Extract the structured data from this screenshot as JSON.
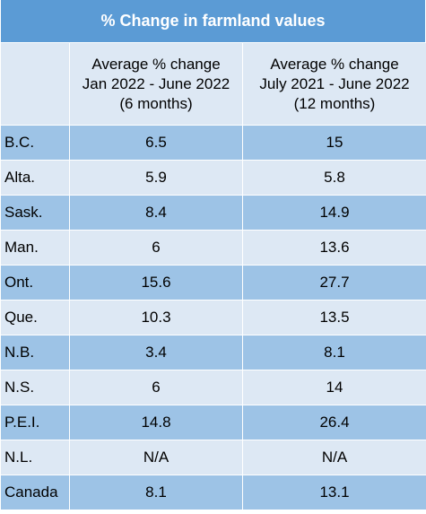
{
  "title": "% Change in farmland values",
  "columns": [
    "",
    "Average % change Jan 2022 - June 2022 (6 months)",
    "Average % change July 2021 - June 2022 (12 months)"
  ],
  "header_lines": {
    "col1": [
      "Average % change",
      "Jan 2022 - June 2022",
      "(6 months)"
    ],
    "col2": [
      "Average % change",
      "July 2021 - June 2022",
      "(12 months)"
    ]
  },
  "colors": {
    "title_bg": "#5b9bd5",
    "row_dark": "#9dc3e6",
    "row_light": "#dde8f4"
  },
  "chart_data": {
    "type": "table",
    "title": "% Change in farmland values",
    "columns": [
      "",
      "Average % change Jan 2022 - June 2022 (6 months)",
      "Average % change July 2021 - June 2022 (12 months)"
    ],
    "rows": [
      [
        "B.C.",
        "6.5",
        "15"
      ],
      [
        "Alta.",
        "5.9",
        "5.8"
      ],
      [
        "Sask.",
        "8.4",
        "14.9"
      ],
      [
        "Man.",
        "6",
        "13.6"
      ],
      [
        "Ont.",
        "15.6",
        "27.7"
      ],
      [
        "Que.",
        "10.3",
        "13.5"
      ],
      [
        "N.B.",
        "3.4",
        "8.1"
      ],
      [
        "N.S.",
        "6",
        "14"
      ],
      [
        "P.E.I.",
        "14.8",
        "26.4"
      ],
      [
        "N.L.",
        "N/A",
        "N/A"
      ],
      [
        "Canada",
        "8.1",
        "13.1"
      ]
    ]
  }
}
